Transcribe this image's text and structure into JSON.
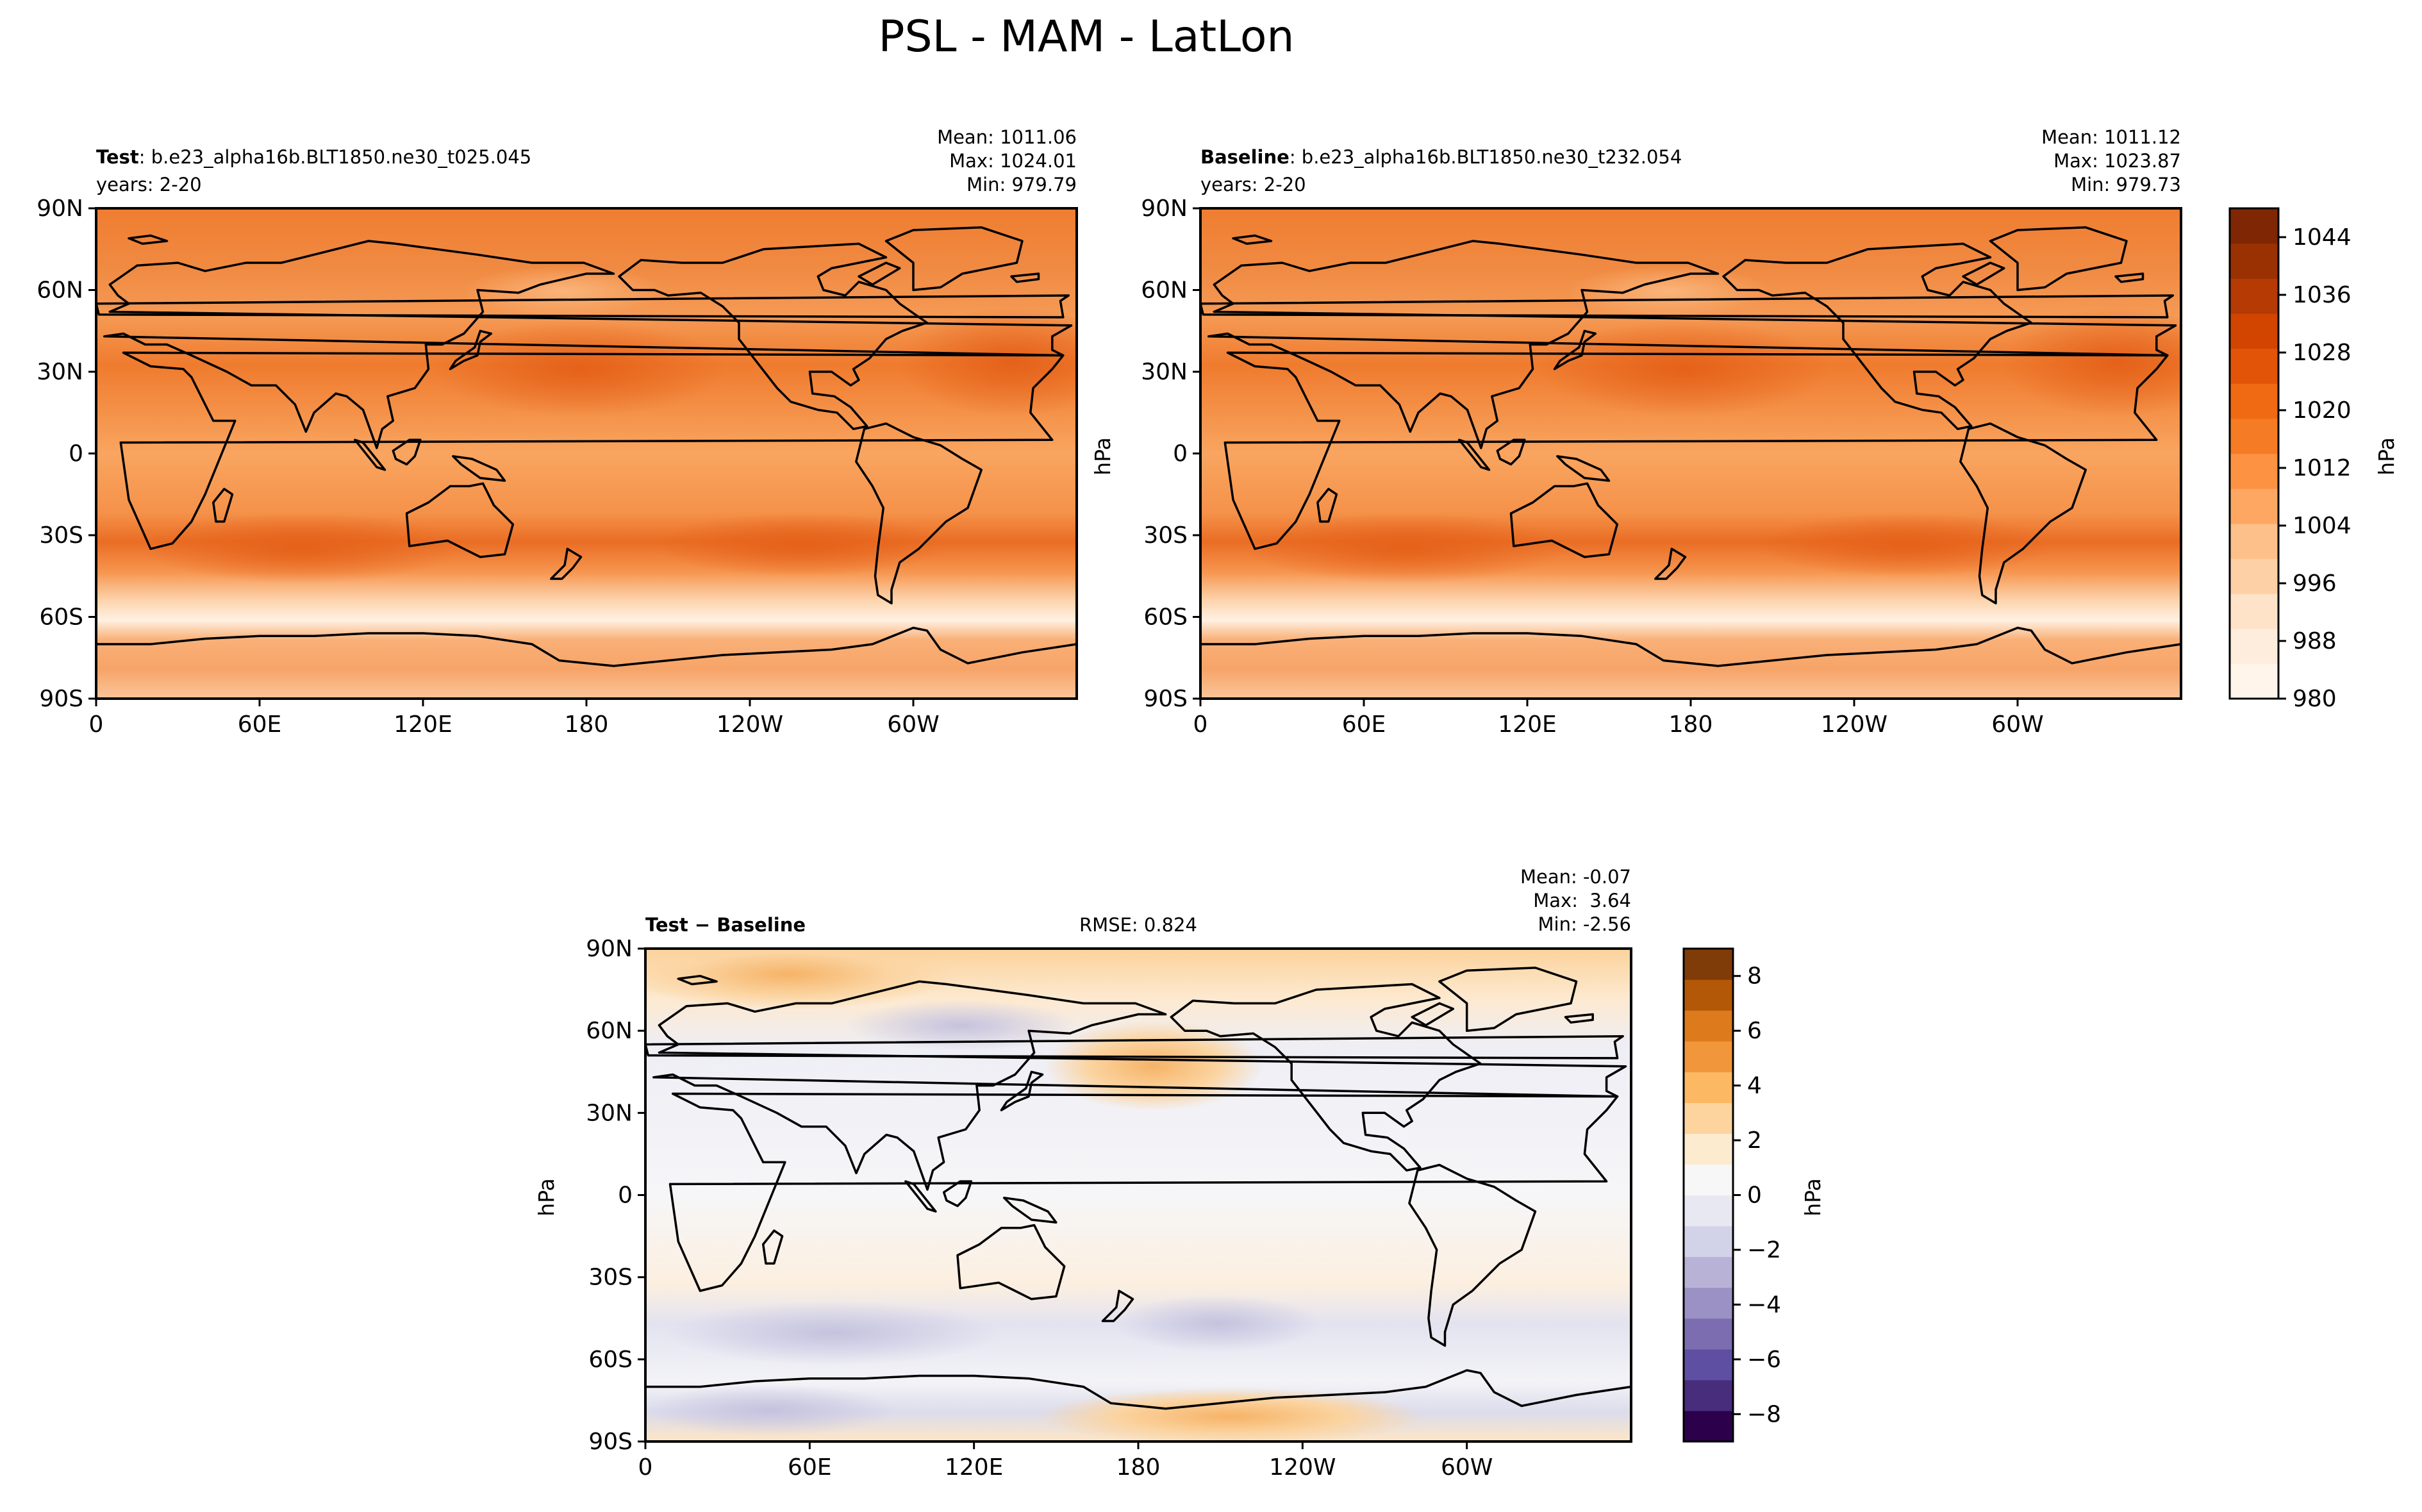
{
  "figure_title": "PSL - MAM - LatLon",
  "lat_ticks": [
    "90N",
    "60N",
    "30N",
    "0",
    "30S",
    "60S",
    "90S"
  ],
  "lon_ticks": [
    "0",
    "60E",
    "120E",
    "180",
    "120W",
    "60W"
  ],
  "panels": {
    "test": {
      "label_bold": "Test",
      "label_rest": ": b.e23_alpha16b.BLT1850.ne30_t025.045",
      "years": "years: 2-20",
      "stats": [
        "Mean: 1011.06",
        "Max: 1024.01",
        "Min: 979.79"
      ]
    },
    "baseline": {
      "label_bold": "Baseline",
      "label_rest": ": b.e23_alpha16b.BLT1850.ne30_t232.054",
      "years": "years: 2-20",
      "ylabel": "hPa",
      "stats": [
        "Mean: 1011.12",
        "Max: 1023.87",
        "Min: 979.73"
      ]
    },
    "diff": {
      "label": "Test − Baseline",
      "rmse": "RMSE: 0.824",
      "ylabel": "hPa",
      "stats": [
        "Mean: -0.07",
        "Max:  3.64",
        "Min: -2.56"
      ]
    }
  },
  "colorbars": {
    "abs": {
      "label": "hPa",
      "ticks": [
        "1044",
        "1036",
        "1028",
        "1020",
        "1012",
        "1004",
        "996",
        "988",
        "980"
      ],
      "colors": [
        "#fff5eb",
        "#feeddc",
        "#fee3c8",
        "#fdd1a5",
        "#fdc08a",
        "#fda762",
        "#fd9243",
        "#f57b24",
        "#ef6a13",
        "#e25508",
        "#d14501",
        "#b53a03",
        "#9a3103",
        "#7f2704"
      ]
    },
    "diff": {
      "label": "hPa",
      "ticks": [
        "8",
        "6",
        "4",
        "2",
        "0",
        "−2",
        "−4",
        "−6",
        "−8"
      ],
      "colors": [
        "#2d004b",
        "#472d7b",
        "#5e4fa2",
        "#7b6db0",
        "#9b91c4",
        "#b8b2d6",
        "#d2d2e8",
        "#e8e8f2",
        "#f7f7f7",
        "#fdebd0",
        "#fdd49e",
        "#fdb863",
        "#f1963a",
        "#dd7a1b",
        "#b35806",
        "#7f3b08"
      ]
    },
    "abs_range": [
      980,
      1048
    ],
    "diff_range": [
      -9,
      9
    ]
  },
  "chart_data": [
    {
      "type": "heatmap",
      "title": "Test",
      "variable": "PSL",
      "units": "hPa",
      "xlabel": "",
      "ylabel": "",
      "x_ticks": [
        "0",
        "60E",
        "120E",
        "180",
        "120W",
        "60W"
      ],
      "y_ticks": [
        "90N",
        "60N",
        "30N",
        "0",
        "30S",
        "60S",
        "90S"
      ],
      "zlim": [
        980,
        1048
      ],
      "zonal_profile": {
        "lat": [
          90,
          60,
          30,
          0,
          -30,
          -45,
          -60,
          -75,
          -90
        ],
        "value": [
          1014,
          1012,
          1018,
          1010,
          1020,
          1008,
          988,
          990,
          995
        ]
      },
      "stats": {
        "mean": 1011.06,
        "max": 1024.01,
        "min": 979.79
      }
    },
    {
      "type": "heatmap",
      "title": "Baseline",
      "variable": "PSL",
      "units": "hPa",
      "xlabel": "",
      "ylabel": "hPa",
      "x_ticks": [
        "0",
        "60E",
        "120E",
        "180",
        "120W",
        "60W"
      ],
      "y_ticks": [
        "90N",
        "60N",
        "30N",
        "0",
        "30S",
        "60S",
        "90S"
      ],
      "zlim": [
        980,
        1048
      ],
      "zonal_profile": {
        "lat": [
          90,
          60,
          30,
          0,
          -30,
          -45,
          -60,
          -75,
          -90
        ],
        "value": [
          1014,
          1012,
          1018,
          1010,
          1020,
          1008,
          988,
          990,
          995
        ]
      },
      "stats": {
        "mean": 1011.12,
        "max": 1023.87,
        "min": 979.73
      }
    },
    {
      "type": "heatmap",
      "title": "Test − Baseline",
      "variable": "PSL difference",
      "units": "hPa",
      "xlabel": "",
      "ylabel": "hPa",
      "x_ticks": [
        "0",
        "60E",
        "120E",
        "180",
        "120W",
        "60W"
      ],
      "y_ticks": [
        "90N",
        "60N",
        "30N",
        "0",
        "30S",
        "60S",
        "90S"
      ],
      "zlim": [
        -9,
        9
      ],
      "features": [
        {
          "lon": 60,
          "lat": 85,
          "value": 3.5
        },
        {
          "lon": 190,
          "lat": 50,
          "value": 3.64
        },
        {
          "lon": 90,
          "lat": -70,
          "value": -2.56
        },
        {
          "lon": 210,
          "lat": -45,
          "value": -1.5
        }
      ],
      "stats": {
        "mean": -0.07,
        "max": 3.64,
        "min": -2.56,
        "rmse": 0.824
      }
    }
  ]
}
